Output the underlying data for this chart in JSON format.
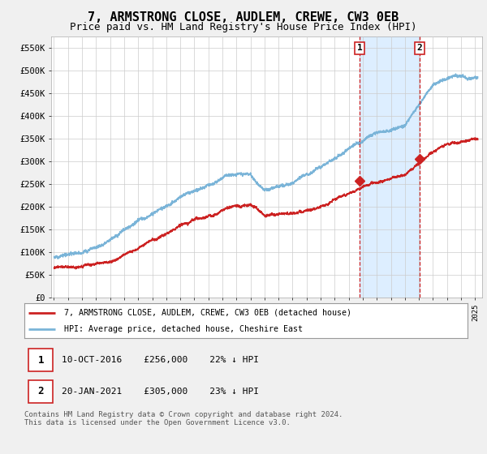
{
  "title": "7, ARMSTRONG CLOSE, AUDLEM, CREWE, CW3 0EB",
  "subtitle": "Price paid vs. HM Land Registry's House Price Index (HPI)",
  "title_fontsize": 11,
  "subtitle_fontsize": 9,
  "ylabel_ticks": [
    "£0",
    "£50K",
    "£100K",
    "£150K",
    "£200K",
    "£250K",
    "£300K",
    "£350K",
    "£400K",
    "£450K",
    "£500K",
    "£550K"
  ],
  "ytick_values": [
    0,
    50000,
    100000,
    150000,
    200000,
    250000,
    300000,
    350000,
    400000,
    450000,
    500000,
    550000
  ],
  "ylim": [
    0,
    575000
  ],
  "xlim_start": 1994.8,
  "xlim_end": 2025.5,
  "hpi_color": "#7ab4d8",
  "price_color": "#cc2222",
  "shade_color": "#ddeeff",
  "vline_color": "#cc2222",
  "marker1_date": 2016.78,
  "marker1_price": 256000,
  "marker2_date": 2021.05,
  "marker2_price": 305000,
  "legend_line1": "7, ARMSTRONG CLOSE, AUDLEM, CREWE, CW3 0EB (detached house)",
  "legend_line2": "HPI: Average price, detached house, Cheshire East",
  "marker1_text": "10-OCT-2016    £256,000    22% ↓ HPI",
  "marker2_text": "20-JAN-2021    £305,000    23% ↓ HPI",
  "footer": "Contains HM Land Registry data © Crown copyright and database right 2024.\nThis data is licensed under the Open Government Licence v3.0.",
  "background_color": "#f0f0f0",
  "plot_bg_color": "#ffffff",
  "grid_color": "#cccccc"
}
